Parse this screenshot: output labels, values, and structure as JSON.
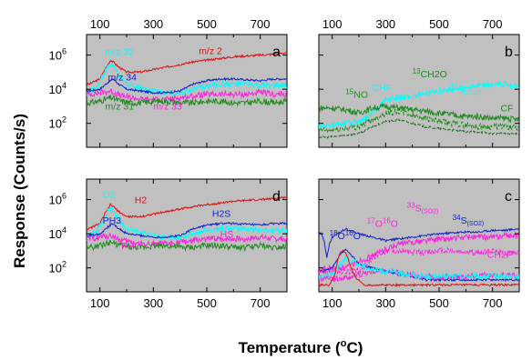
{
  "chart_data": {
    "type": "line",
    "xlabel_text": "Temperature (",
    "xlabel_degree": "o",
    "xlabel_unit": "C)",
    "ylabel": "Response (Counts/s)",
    "xlim": [
      50,
      800
    ],
    "ylim_log10": [
      0.6,
      7.2
    ],
    "x_ticks": [
      100,
      300,
      500,
      700
    ],
    "y_ticks": [
      2,
      4,
      6
    ],
    "y_tick_base": "10",
    "log_scale_y": true,
    "background": "#c0c0c0",
    "panels": [
      {
        "id": "a",
        "letter": "a",
        "col": 0,
        "row": 0,
        "series": [
          {
            "color": "#dd1111",
            "x": [
              60,
              100,
              120,
              140,
              150,
              170,
              200,
              250,
              300,
              350,
              400,
              450,
              500,
              550,
              600,
              650,
              700,
              750,
              800
            ],
            "y": [
              4.3,
              4.6,
              5.2,
              5.7,
              5.6,
              5.3,
              5.0,
              5.0,
              5.15,
              5.3,
              5.45,
              5.6,
              5.7,
              5.8,
              5.9,
              5.95,
              6.0,
              6.05,
              6.15
            ]
          },
          {
            "color": "#00ffff",
            "x": [
              60,
              90,
              110,
              130,
              145,
              160,
              180,
              200,
              250,
              300,
              350,
              400,
              450,
              500,
              550,
              600,
              650,
              700,
              750,
              800
            ],
            "y": [
              3.8,
              4.2,
              4.8,
              5.3,
              5.45,
              5.1,
              4.6,
              4.3,
              4.1,
              3.9,
              3.8,
              3.8,
              4.0,
              4.2,
              4.3,
              4.3,
              4.3,
              4.2,
              4.2,
              4.2
            ]
          },
          {
            "color": "#1122cc",
            "x": [
              60,
              100,
              130,
              150,
              170,
              200,
              250,
              300,
              350,
              400,
              450,
              500,
              550,
              600,
              650,
              700,
              750,
              800
            ],
            "y": [
              3.9,
              4.0,
              4.4,
              4.6,
              4.3,
              4.0,
              3.9,
              3.8,
              3.8,
              3.9,
              4.3,
              4.5,
              4.6,
              4.6,
              4.55,
              4.5,
              4.6,
              4.6
            ]
          },
          {
            "color": "#ff22dd",
            "x": [
              60,
              100,
              140,
              180,
              220,
              260,
              300,
              350,
              400,
              450,
              500,
              550,
              600,
              650,
              700,
              750,
              800
            ],
            "y": [
              3.7,
              3.8,
              3.9,
              3.6,
              3.5,
              3.4,
              3.4,
              3.4,
              3.5,
              3.6,
              3.7,
              3.7,
              3.7,
              3.7,
              3.8,
              3.7,
              3.7
            ]
          },
          {
            "color": "#228b22",
            "x": [
              60,
              100,
              140,
              180,
              220,
              260,
              300,
              350,
              400,
              450,
              500,
              550,
              600,
              650,
              700,
              750,
              800
            ],
            "y": [
              3.2,
              3.3,
              3.5,
              3.3,
              3.2,
              3.2,
              3.3,
              3.3,
              3.2,
              3.2,
              3.3,
              3.3,
              3.2,
              3.2,
              3.3,
              3.2,
              3.3
            ]
          }
        ],
        "labels": [
          {
            "text": "m/z 32",
            "x": 120,
            "y": 6.0,
            "color": "#00ffff"
          },
          {
            "text": "m/z 2",
            "x": 470,
            "y": 6.05,
            "color": "#dd1111"
          },
          {
            "text": "m/z 34",
            "x": 130,
            "y": 4.5,
            "color": "#1122cc"
          },
          {
            "text": "m/z 31",
            "x": 120,
            "y": 2.8,
            "color": "#228b22"
          },
          {
            "text": "m/z 33",
            "x": 300,
            "y": 2.8,
            "color": "#ff22dd"
          }
        ]
      },
      {
        "id": "b",
        "letter": "b",
        "col": 1,
        "row": 0,
        "series": [
          {
            "color": "#00ffff",
            "x": [
              60,
              100,
              150,
              200,
              250,
              300,
              350,
              400,
              450,
              500,
              550,
              600,
              650,
              700,
              750,
              800
            ],
            "y": [
              1.8,
              1.9,
              2.0,
              2.1,
              2.6,
              3.4,
              3.5,
              3.6,
              3.75,
              3.9,
              4.0,
              4.1,
              4.2,
              4.25,
              4.3,
              4.2
            ]
          },
          {
            "color": "#228b22",
            "x": [
              60,
              100,
              150,
              200,
              250,
              300,
              350,
              400,
              450,
              500,
              550,
              600,
              650,
              700,
              750,
              800
            ],
            "y": [
              2.9,
              2.9,
              2.8,
              2.6,
              2.9,
              3.0,
              2.9,
              2.8,
              2.7,
              2.6,
              2.5,
              2.4,
              2.4,
              2.3,
              2.3,
              2.2
            ]
          },
          {
            "color": "#228b22",
            "dash": true,
            "x": [
              60,
              100,
              150,
              200,
              250,
              300,
              350,
              400,
              450,
              500,
              550,
              600,
              650,
              700,
              750,
              800
            ],
            "y": [
              1.6,
              1.6,
              1.7,
              1.8,
              2.2,
              2.6,
              2.7,
              2.5,
              2.3,
              2.1,
              2.0,
              1.9,
              1.8,
              1.8,
              1.8,
              1.7
            ]
          },
          {
            "color": "#1a6b1a",
            "dash": true,
            "x": [
              60,
              100,
              150,
              200,
              250,
              300,
              350,
              400,
              450,
              500,
              550,
              600,
              650,
              700,
              750,
              800
            ],
            "y": [
              1.2,
              1.2,
              1.3,
              1.4,
              1.8,
              2.1,
              2.2,
              2.0,
              1.8,
              1.7,
              1.6,
              1.5,
              1.5,
              1.4,
              1.4,
              1.4
            ]
          }
        ],
        "labels": [
          {
            "text": "15NO",
            "sup": "15",
            "main": "NO",
            "x": 150,
            "y": 3.5,
            "color": "#228b22"
          },
          {
            "text": "CHF",
            "x": 250,
            "y": 3.9,
            "color": "#00ffff"
          },
          {
            "sup": "13",
            "main": "CH2O",
            "x": 400,
            "y": 4.7,
            "color": "#228b22"
          },
          {
            "sup": "32",
            "main": "S",
            "sub": "(SO2)",
            "x": 540,
            "y": 3.8,
            "color": "#00ffff"
          },
          {
            "text": "CF",
            "x": 730,
            "y": 2.7,
            "color": "#228b22"
          }
        ]
      },
      {
        "id": "d",
        "letter": "d",
        "col": 0,
        "row": 1,
        "series": [
          {
            "color": "#dd1111",
            "x": [
              60,
              100,
              120,
              140,
              150,
              170,
              200,
              250,
              300,
              350,
              400,
              450,
              500,
              550,
              600,
              650,
              700,
              750,
              800
            ],
            "y": [
              4.3,
              4.6,
              5.2,
              5.7,
              5.6,
              5.3,
              5.0,
              5.0,
              5.15,
              5.3,
              5.45,
              5.6,
              5.7,
              5.8,
              5.9,
              5.95,
              6.0,
              6.05,
              6.15
            ]
          },
          {
            "color": "#00ffff",
            "x": [
              60,
              90,
              110,
              130,
              145,
              160,
              180,
              200,
              250,
              300,
              350,
              400,
              450,
              500,
              550,
              600,
              650,
              700,
              750,
              800
            ],
            "y": [
              3.8,
              4.2,
              4.8,
              5.3,
              5.45,
              5.1,
              4.6,
              4.3,
              4.1,
              3.9,
              3.8,
              3.8,
              4.0,
              4.2,
              4.3,
              4.3,
              4.3,
              4.2,
              4.2,
              4.2
            ]
          },
          {
            "color": "#1122cc",
            "x": [
              60,
              100,
              130,
              150,
              170,
              200,
              250,
              300,
              350,
              400,
              450,
              500,
              550,
              600,
              650,
              700,
              750,
              800
            ],
            "y": [
              3.9,
              4.0,
              4.4,
              4.6,
              4.3,
              4.0,
              3.9,
              3.8,
              3.8,
              3.9,
              4.3,
              4.5,
              4.6,
              4.6,
              4.55,
              4.5,
              4.6,
              4.6
            ]
          },
          {
            "color": "#ff22dd",
            "x": [
              60,
              100,
              140,
              180,
              220,
              260,
              300,
              350,
              400,
              450,
              500,
              550,
              600,
              650,
              700,
              750,
              800
            ],
            "y": [
              3.7,
              3.8,
              3.9,
              3.6,
              3.5,
              3.4,
              3.4,
              3.4,
              3.5,
              3.6,
              3.7,
              3.7,
              3.7,
              3.7,
              3.8,
              3.7,
              3.7
            ]
          },
          {
            "color": "#228b22",
            "x": [
              60,
              100,
              140,
              180,
              220,
              260,
              300,
              350,
              400,
              450,
              500,
              550,
              600,
              650,
              700,
              750,
              800
            ],
            "y": [
              3.2,
              3.3,
              3.5,
              3.3,
              3.2,
              3.2,
              3.3,
              3.3,
              3.2,
              3.2,
              3.3,
              3.3,
              3.2,
              3.2,
              3.3,
              3.2,
              3.3
            ]
          }
        ],
        "labels": [
          {
            "main": "O2",
            "x": 110,
            "y": 6.1,
            "color": "#00ffff"
          },
          {
            "main": "H2",
            "x": 230,
            "y": 5.8,
            "color": "#dd1111"
          },
          {
            "main": "H2S",
            "x": 520,
            "y": 5.0,
            "color": "#1122cc"
          },
          {
            "main": "PH3",
            "x": 110,
            "y": 4.6,
            "color": "#1122cc"
          },
          {
            "main": "HS",
            "x": 550,
            "y": 3.8,
            "color": "#ff22dd"
          },
          {
            "main": "PH2",
            "x": 180,
            "y": 3.1,
            "color": "#ff22dd"
          }
        ]
      },
      {
        "id": "c",
        "letter": "c",
        "col": 1,
        "row": 1,
        "series": [
          {
            "color": "#1122cc",
            "x": [
              60,
              70,
              80,
              90,
              100,
              120,
              150,
              200,
              250,
              300,
              350,
              400,
              450,
              500,
              550,
              600,
              650,
              700,
              750,
              800
            ],
            "y": [
              4.0,
              3.6,
              2.6,
              3.4,
              3.8,
              4.0,
              4.3,
              4.0,
              3.8,
              3.6,
              3.7,
              3.8,
              3.9,
              4.0,
              4.05,
              4.1,
              4.1,
              4.2,
              4.2,
              4.3
            ]
          },
          {
            "color": "#ff22dd",
            "x": [
              60,
              100,
              150,
              200,
              250,
              300,
              350,
              400,
              450,
              500,
              550,
              600,
              650,
              700,
              750,
              800
            ],
            "y": [
              1.9,
              2.0,
              2.0,
              2.4,
              2.7,
              3.1,
              3.4,
              3.5,
              3.6,
              3.7,
              3.7,
              3.8,
              3.8,
              3.8,
              3.9,
              3.9
            ]
          },
          {
            "color": "#1122cc",
            "x": [
              60,
              100,
              130,
              150,
              180,
              200,
              250,
              300,
              350,
              400,
              450
            ],
            "y": [
              1.8,
              2.0,
              2.8,
              3.1,
              2.6,
              2.2,
              2.0,
              1.8,
              1.6,
              1.5,
              1.3
            ]
          },
          {
            "color": "#ff22dd",
            "dash": true,
            "x": [
              200,
              250,
              300,
              350,
              400,
              450,
              500,
              550,
              600,
              650,
              700,
              750,
              800
            ],
            "y": [
              1.8,
              2.6,
              3.0,
              3.0,
              2.9,
              2.9,
              3.0,
              3.0,
              2.9,
              2.9,
              3.0,
              2.9,
              2.9
            ]
          },
          {
            "color": "#ff22dd",
            "x": [
              60,
              100,
              150,
              200,
              250,
              300,
              350,
              400,
              450,
              500,
              550,
              600,
              650,
              700,
              750,
              800
            ],
            "y": [
              1.4,
              1.4,
              1.4,
              1.6,
              1.8,
              1.8,
              1.7,
              1.6,
              1.5,
              1.4,
              1.5,
              1.5,
              1.6,
              1.5,
              1.6,
              1.5
            ]
          },
          {
            "color": "#00ffff",
            "x": [
              60,
              100,
              150,
              200,
              250,
              300,
              350,
              400,
              450
            ],
            "y": [
              1.5,
              1.6,
              2.6,
              2.2,
              1.9,
              1.8,
              1.7,
              1.6,
              1.5
            ]
          },
          {
            "color": "#dd1111",
            "x": [
              90,
              110,
              120,
              130,
              140,
              150,
              160,
              170,
              190,
              220
            ],
            "y": [
              1.0,
              1.6,
              2.4,
              2.9,
              3.0,
              2.9,
              2.5,
              2.0,
              1.4,
              1.0
            ]
          }
        ],
        "labels": [
          {
            "sup": "18",
            "main": "O",
            "sup2": "16",
            "main2": "O",
            "x": 90,
            "y": 3.7,
            "color": "#1122cc"
          },
          {
            "sup": "17",
            "main": "O",
            "sup2": "16",
            "main2": "O",
            "x": 230,
            "y": 4.4,
            "color": "#ff22dd"
          },
          {
            "sup": "33",
            "main": "S",
            "sub": "(SO2)",
            "x": 380,
            "y": 5.3,
            "color": "#ff22dd"
          },
          {
            "sup": "34",
            "main": "S",
            "sub": "(SO2)",
            "x": 550,
            "y": 4.6,
            "color": "#1122cc"
          },
          {
            "main": "CH2F",
            "x": 680,
            "y": 2.6,
            "color": "#ff22dd"
          }
        ]
      }
    ]
  }
}
